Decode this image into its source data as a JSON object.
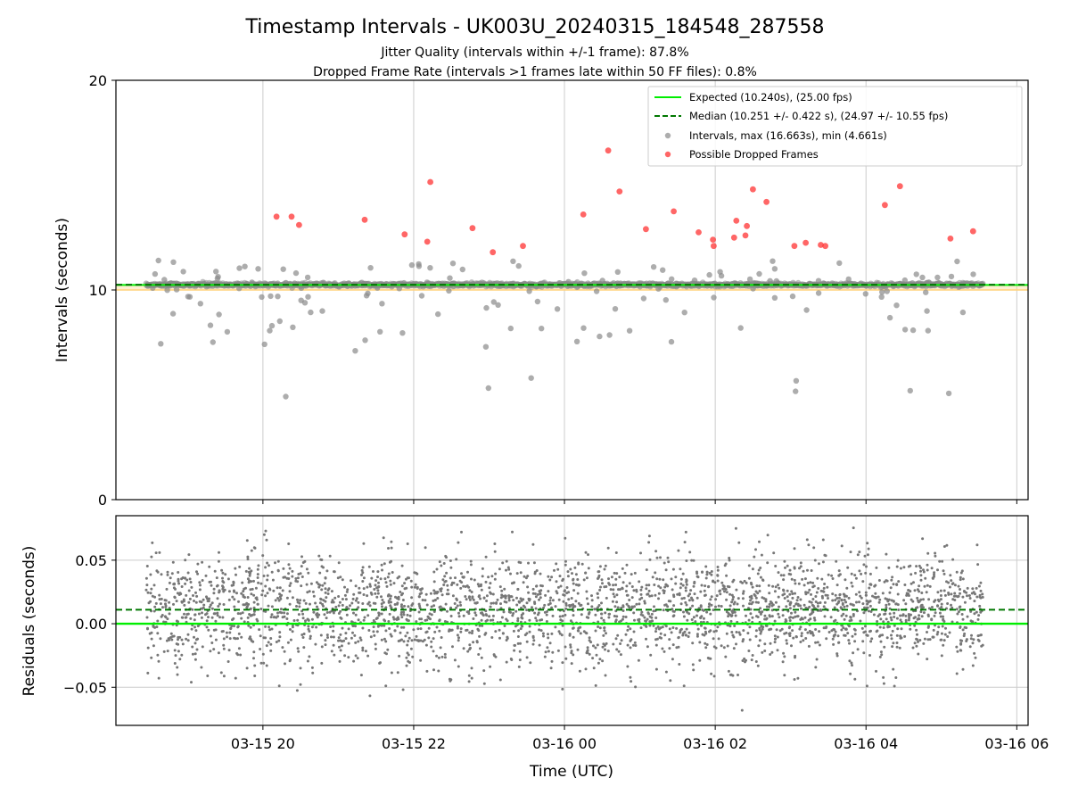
{
  "chart_data": [
    {
      "type": "scatter",
      "panel": "top",
      "title": "Timestamp Intervals - UK003U_20240315_184548_287558",
      "subtitle_lines": [
        "Jitter Quality (intervals within +/-1 frame): 87.8%",
        "Dropped Frame Rate (intervals >1 frames late within 50 FF files): 0.8%"
      ],
      "ylabel": "Intervals (seconds)",
      "ylim": [
        0,
        20
      ],
      "yticks": [
        "0",
        "10",
        "20"
      ],
      "x_range_hours": [
        -5.95,
        6.15
      ],
      "expected_interval": 10.24,
      "expected_band": [
        10.0,
        10.24
      ],
      "median_interval": 10.251,
      "legend": [
        "Expected (10.240s), (25.00 fps)",
        "Median (10.251 +/- 0.422 s), (24.97 +/- 10.55 fps)",
        "Intervals, max (16.663s), min (4.661s)",
        "Possible Dropped Frames"
      ],
      "colors": {
        "expected": "#00ee00",
        "median": "#007700",
        "intervals": "#8a8a8a",
        "dropped": "#ff3333",
        "band": "#ffd27a",
        "grid": "#cccccc"
      },
      "dropped_frames": [
        {
          "t": -3.82,
          "v": 13.5
        },
        {
          "t": -3.62,
          "v": 13.5
        },
        {
          "t": -3.52,
          "v": 13.1
        },
        {
          "t": -2.65,
          "v": 13.35
        },
        {
          "t": -2.12,
          "v": 12.65
        },
        {
          "t": -1.78,
          "v": 15.15
        },
        {
          "t": -1.82,
          "v": 12.3
        },
        {
          "t": -1.22,
          "v": 12.95
        },
        {
          "t": -0.95,
          "v": 11.8
        },
        {
          "t": -0.55,
          "v": 12.1
        },
        {
          "t": 0.25,
          "v": 13.6
        },
        {
          "t": 0.58,
          "v": 16.65
        },
        {
          "t": 0.73,
          "v": 14.7
        },
        {
          "t": 1.08,
          "v": 12.9
        },
        {
          "t": 1.45,
          "v": 13.75
        },
        {
          "t": 1.78,
          "v": 12.75
        },
        {
          "t": 1.97,
          "v": 12.4
        },
        {
          "t": 1.98,
          "v": 12.1
        },
        {
          "t": 2.28,
          "v": 13.3
        },
        {
          "t": 2.42,
          "v": 13.05
        },
        {
          "t": 2.25,
          "v": 12.5
        },
        {
          "t": 2.4,
          "v": 12.6
        },
        {
          "t": 2.5,
          "v": 14.8
        },
        {
          "t": 2.68,
          "v": 14.2
        },
        {
          "t": 3.05,
          "v": 12.1
        },
        {
          "t": 3.2,
          "v": 12.25
        },
        {
          "t": 3.4,
          "v": 12.15
        },
        {
          "t": 3.46,
          "v": 12.1
        },
        {
          "t": 4.25,
          "v": 14.05
        },
        {
          "t": 4.45,
          "v": 14.95
        },
        {
          "t": 5.12,
          "v": 12.45
        },
        {
          "t": 5.42,
          "v": 12.8
        }
      ]
    },
    {
      "type": "scatter",
      "panel": "bottom",
      "xlabel": "Time (UTC)",
      "ylabel": "Residuals (seconds)",
      "ylim": [
        -0.08,
        0.085
      ],
      "yticks": [
        "0.05",
        "0.00",
        "−0.05"
      ],
      "ytick_values": [
        0.05,
        0.0,
        -0.05
      ],
      "median_residual": 0.011,
      "xticks": [
        "03-15 20",
        "03-15 22",
        "03-16 00",
        "03-16 02",
        "03-16 04",
        "03-16 06"
      ],
      "xtick_hours": [
        -4,
        -2,
        0,
        2,
        4,
        6
      ]
    }
  ]
}
